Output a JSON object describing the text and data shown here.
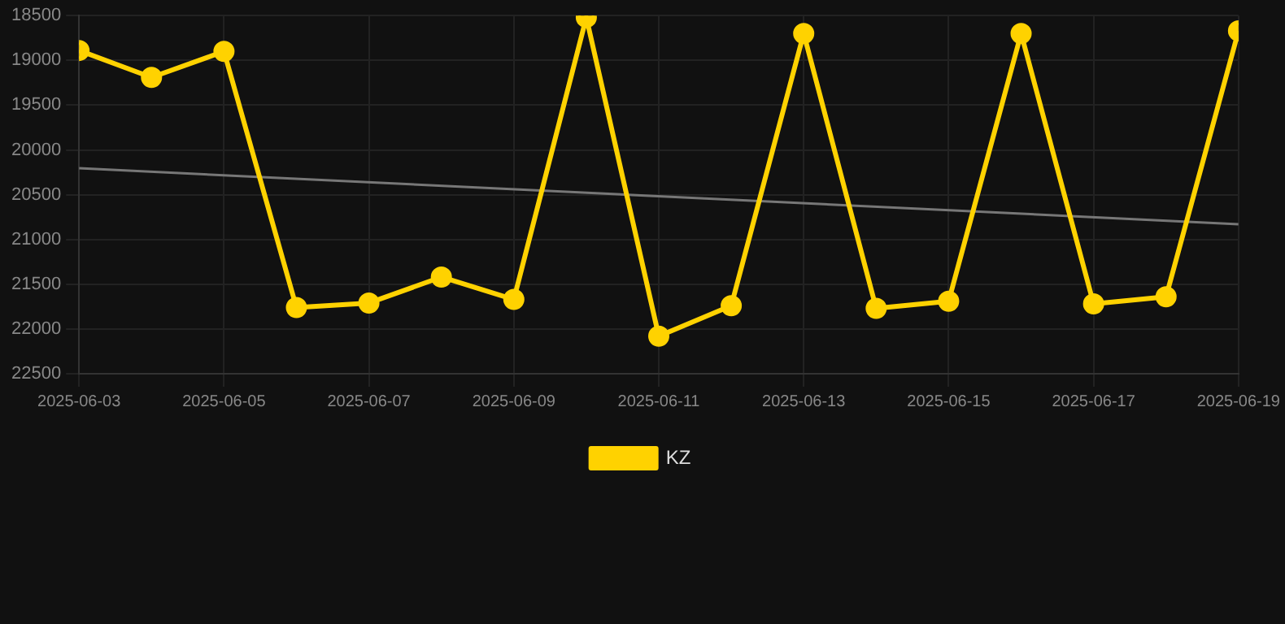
{
  "chart_data": {
    "type": "line",
    "x": [
      "2025-06-03",
      "2025-06-04",
      "2025-06-05",
      "2025-06-06",
      "2025-06-07",
      "2025-06-08",
      "2025-06-09",
      "2025-06-10",
      "2025-06-11",
      "2025-06-12",
      "2025-06-13",
      "2025-06-14",
      "2025-06-15",
      "2025-06-16",
      "2025-06-17",
      "2025-06-18",
      "2025-06-19"
    ],
    "series": [
      {
        "name": "KZ",
        "color": "#ffd200",
        "values": [
          18890,
          19190,
          18900,
          21760,
          21710,
          21420,
          21670,
          18520,
          22080,
          21740,
          18700,
          21770,
          21690,
          18700,
          21720,
          21640,
          18670
        ]
      },
      {
        "type": "line",
        "color": "#777777",
        "x": [
          "2025-06-03",
          "2025-06-19"
        ],
        "values": [
          20205,
          20830
        ],
        "marker": "none"
      }
    ],
    "ylim": [
      22500,
      18500
    ],
    "yticks": [
      18500,
      19000,
      19500,
      20000,
      20500,
      21000,
      21500,
      22000,
      22500
    ],
    "xlim": [
      "2025-06-03",
      "2025-06-19"
    ],
    "xticks": [
      "2025-06-03",
      "2025-06-05",
      "2025-06-07",
      "2025-06-09",
      "2025-06-11",
      "2025-06-13",
      "2025-06-15",
      "2025-06-17",
      "2025-06-19"
    ],
    "grid": true,
    "legend": "bottom",
    "marker": "circle"
  }
}
